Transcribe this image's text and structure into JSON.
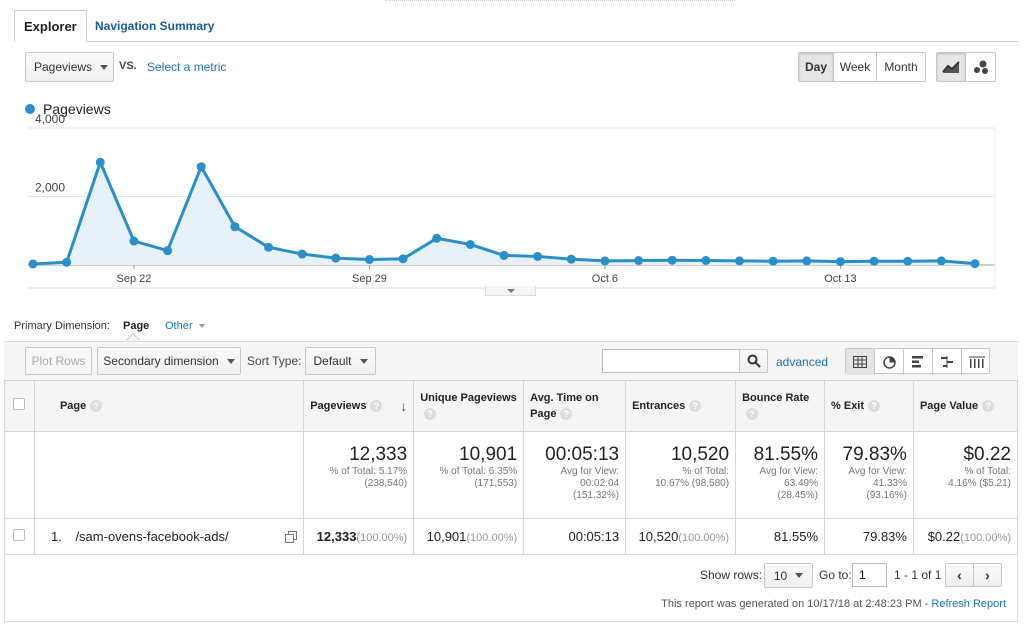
{
  "tabs": {
    "explorer": "Explorer",
    "navigation_summary": "Navigation Summary"
  },
  "metric_select": {
    "value": "Pageviews",
    "vs": "VS.",
    "select_metric": "Select a metric"
  },
  "period_buttons": {
    "day": "Day",
    "week": "Week",
    "month": "Month"
  },
  "chart_data": {
    "type": "line",
    "legend": [
      "Pageviews"
    ],
    "ytick_labels": [
      "4,000",
      "2,000"
    ],
    "ylim": [
      0,
      4000
    ],
    "xtick_labels": [
      "Sep 22",
      "Sep 29",
      "Oct 6",
      "Oct 13"
    ],
    "x": [
      "Sep 19",
      "Sep 20",
      "Sep 21",
      "Sep 22",
      "Sep 23",
      "Sep 24",
      "Sep 25",
      "Sep 26",
      "Sep 27",
      "Sep 28",
      "Sep 29",
      "Sep 30",
      "Oct 1",
      "Oct 2",
      "Oct 3",
      "Oct 4",
      "Oct 5",
      "Oct 6",
      "Oct 7",
      "Oct 8",
      "Oct 9",
      "Oct 10",
      "Oct 11",
      "Oct 12",
      "Oct 13",
      "Oct 14",
      "Oct 15",
      "Oct 16",
      "Oct 17"
    ],
    "series": [
      {
        "name": "Pageviews",
        "color": "#2a8ec8",
        "values": [
          30,
          80,
          3000,
          700,
          420,
          2870,
          1120,
          520,
          320,
          200,
          160,
          180,
          780,
          600,
          280,
          250,
          170,
          120,
          130,
          140,
          130,
          120,
          110,
          120,
          100,
          110,
          110,
          120,
          40
        ]
      }
    ],
    "grid": true
  },
  "primary_dimension": {
    "label": "Primary Dimension:",
    "value": "Page",
    "other": "Other"
  },
  "toolbar": {
    "plot_rows": "Plot Rows",
    "secondary_dimension": "Secondary dimension",
    "sort_type_label": "Sort Type:",
    "sort_type_value": "Default",
    "search_placeholder": "",
    "advanced": "advanced"
  },
  "table": {
    "headers": {
      "page": "Page",
      "pageviews": "Pageviews",
      "unique_pageviews": "Unique Pageviews",
      "avg_time": "Avg. Time on Page",
      "entrances": "Entrances",
      "bounce_rate": "Bounce Rate",
      "exit": "% Exit",
      "page_value": "Page Value"
    },
    "totals": {
      "pageviews": {
        "value": "12,333",
        "line1": "% of Total: 5.17%",
        "line2": "(238,540)"
      },
      "unique_pageviews": {
        "value": "10,901",
        "line1": "% of Total: 6.35%",
        "line2": "(171,553)"
      },
      "avg_time": {
        "value": "00:05:13",
        "line1": "Avg for View:",
        "line2": "00:02:04",
        "line3": "(151.32%)"
      },
      "entrances": {
        "value": "10,520",
        "line1": "% of Total:",
        "line2": "10.67% (98,580)"
      },
      "bounce_rate": {
        "value": "81.55%",
        "line1": "Avg for View:",
        "line2": "63.49%",
        "line3": "(28.45%)"
      },
      "exit": {
        "value": "79.83%",
        "line1": "Avg for View:",
        "line2": "41.33%",
        "line3": "(93.16%)"
      },
      "page_value": {
        "value": "$0.22",
        "line1": "% of Total:",
        "line2": "4.16% ($5.21)"
      }
    },
    "rows": [
      {
        "index": "1.",
        "page": "/sam-ovens-facebook-ads/",
        "pageviews": "12,333",
        "pageviews_pct": "(100.00%)",
        "unique_pageviews": "10,901",
        "unique_pageviews_pct": "(100.00%)",
        "avg_time": "00:05:13",
        "entrances": "10,520",
        "entrances_pct": "(100.00%)",
        "bounce_rate": "81.55%",
        "exit": "79.83%",
        "page_value": "$0.22",
        "page_value_pct": "(100.00%)"
      }
    ]
  },
  "pagination": {
    "show_rows_label": "Show rows:",
    "show_rows_value": "10",
    "goto_label": "Go to:",
    "goto_value": "1",
    "range": "1 - 1 of 1"
  },
  "footer": {
    "generated": "This report was generated on 10/17/18 at 2:48:23 PM -",
    "refresh": "Refresh Report"
  }
}
